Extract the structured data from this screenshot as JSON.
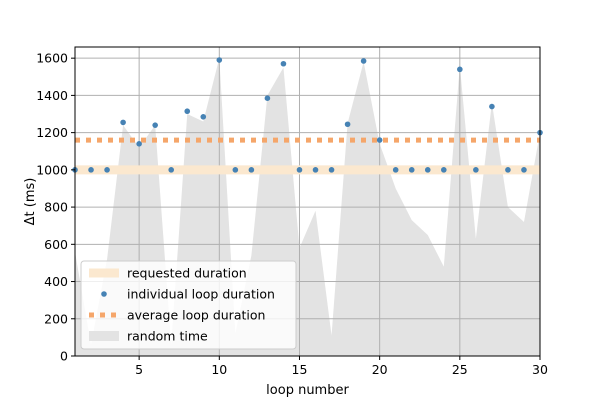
{
  "chart_data": {
    "type": "line",
    "xlabel": "loop number",
    "ylabel": "Δt (ms)",
    "xlim": [
      1,
      30
    ],
    "ylim": [
      0,
      1660
    ],
    "xticks": [
      5,
      10,
      15,
      20,
      25,
      30
    ],
    "yticks": [
      0,
      200,
      400,
      600,
      800,
      1000,
      1200,
      1400,
      1600
    ],
    "xtick_labels": [
      "5",
      "10",
      "15",
      "20",
      "25",
      "30"
    ],
    "ytick_labels": [
      "0",
      "200",
      "400",
      "600",
      "800",
      "1000",
      "1200",
      "1400",
      "1600"
    ],
    "grid": true,
    "legend_position": "lower-left",
    "series": [
      {
        "name": "requested duration",
        "kind": "band",
        "color": "#fbe8cf",
        "x": [
          1,
          30
        ],
        "y": [
          1000,
          1000
        ]
      },
      {
        "name": "individual loop duration",
        "kind": "scatter",
        "color": "#4682b4",
        "x": [
          1,
          2,
          3,
          4,
          5,
          6,
          7,
          8,
          9,
          10,
          11,
          12,
          13,
          14,
          15,
          16,
          17,
          18,
          19,
          20,
          21,
          22,
          23,
          24,
          25,
          26,
          27,
          28,
          29,
          30
        ],
        "y": [
          1000,
          1000,
          1000,
          1255,
          1140,
          1240,
          1000,
          1315,
          1285,
          1590,
          1000,
          1000,
          1385,
          1570,
          1000,
          1000,
          1000,
          1245,
          1585,
          1160,
          1000,
          1000,
          1000,
          1000,
          1540,
          1000,
          1340,
          1000,
          1000,
          1200
        ]
      },
      {
        "name": "average loop duration",
        "kind": "dotted-line",
        "color": "#f5a66a",
        "x": [
          1,
          30
        ],
        "y": [
          1160,
          1160
        ]
      },
      {
        "name": "random time",
        "kind": "area",
        "color": "#e3e3e3",
        "x": [
          1,
          2,
          3,
          4,
          5,
          6,
          7,
          8,
          9,
          10,
          11,
          12,
          13,
          14,
          15,
          16,
          17,
          18,
          19,
          20,
          21,
          22,
          23,
          24,
          25,
          26,
          27,
          28,
          29,
          30
        ],
        "y": [
          560,
          60,
          520,
          1240,
          1120,
          1240,
          60,
          1300,
          1260,
          1600,
          120,
          540,
          1400,
          1550,
          580,
          780,
          110,
          1250,
          1580,
          1140,
          900,
          730,
          650,
          480,
          1560,
          630,
          1360,
          800,
          720,
          1200
        ]
      }
    ]
  }
}
